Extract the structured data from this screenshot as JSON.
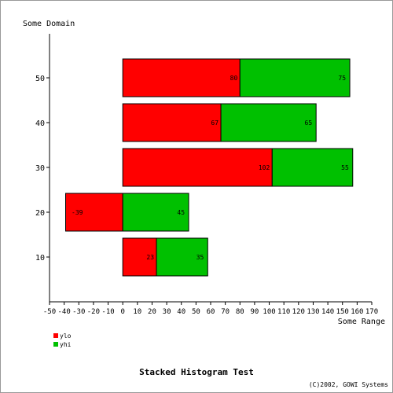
{
  "chart_data": {
    "type": "bar",
    "orientation": "horizontal",
    "stacked": true,
    "title": "Stacked Histogram Test",
    "credit": "(C)2002, GOWI Systems",
    "ylabel": "Some Domain",
    "xlabel": "Some Range",
    "categories": [
      "10",
      "20",
      "30",
      "40",
      "50"
    ],
    "x_ticks": [
      -50,
      -40,
      -30,
      -20,
      -10,
      0,
      10,
      20,
      30,
      40,
      50,
      60,
      70,
      80,
      90,
      100,
      110,
      120,
      130,
      140,
      150,
      160,
      170
    ],
    "xlim": [
      -50,
      170
    ],
    "series": [
      {
        "name": "ylo",
        "color": "#ff0000",
        "values": [
          23,
          -39,
          102,
          67,
          80
        ]
      },
      {
        "name": "yhi",
        "color": "#00c000",
        "values": [
          35,
          45,
          55,
          65,
          75
        ]
      }
    ],
    "legend_position": "bottom-left"
  }
}
